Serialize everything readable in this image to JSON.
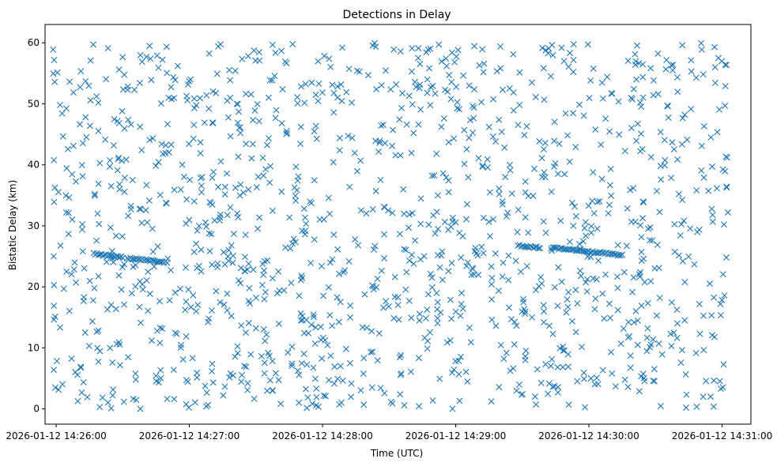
{
  "chart_data": {
    "type": "scatter",
    "title": "Detections in Delay",
    "xlabel": "Time (UTC)",
    "ylabel": "Bistatic Delay (km)",
    "marker": "x",
    "color": "#1f77b4",
    "grid": false,
    "legend": "none",
    "x_ticks": [
      "2026-01-12 14:26:00",
      "2026-01-12 14:27:00",
      "2026-01-12 14:28:00",
      "2026-01-12 14:29:00",
      "2026-01-12 14:30:00",
      "2026-01-12 14:31:00"
    ],
    "y_ticks": [
      "0",
      "10",
      "20",
      "30",
      "40",
      "50",
      "60"
    ],
    "xlim": [
      "2026-01-12 14:25:55",
      "2026-01-12 14:31:13"
    ],
    "ylim": [
      -2.5,
      63
    ],
    "x_range_points": [
      "2026-01-12 14:25:58",
      "2026-01-12 14:31:03"
    ],
    "y_range_points": [
      0,
      60
    ],
    "clutter_point_count": 1350,
    "tracks": [
      {
        "x": [
          "2026-01-12 14:26:17",
          "2026-01-12 14:26:30"
        ],
        "y": [
          25.4,
          24.8
        ]
      },
      {
        "x": [
          "2026-01-12 14:26:32",
          "2026-01-12 14:26:50"
        ],
        "y": [
          24.7,
          24.0
        ]
      },
      {
        "x": [
          "2026-01-12 14:29:28",
          "2026-01-12 14:29:38"
        ],
        "y": [
          26.8,
          26.4
        ]
      },
      {
        "x": [
          "2026-01-12 14:29:43",
          "2026-01-12 14:30:15"
        ],
        "y": [
          26.4,
          25.2
        ]
      }
    ]
  }
}
